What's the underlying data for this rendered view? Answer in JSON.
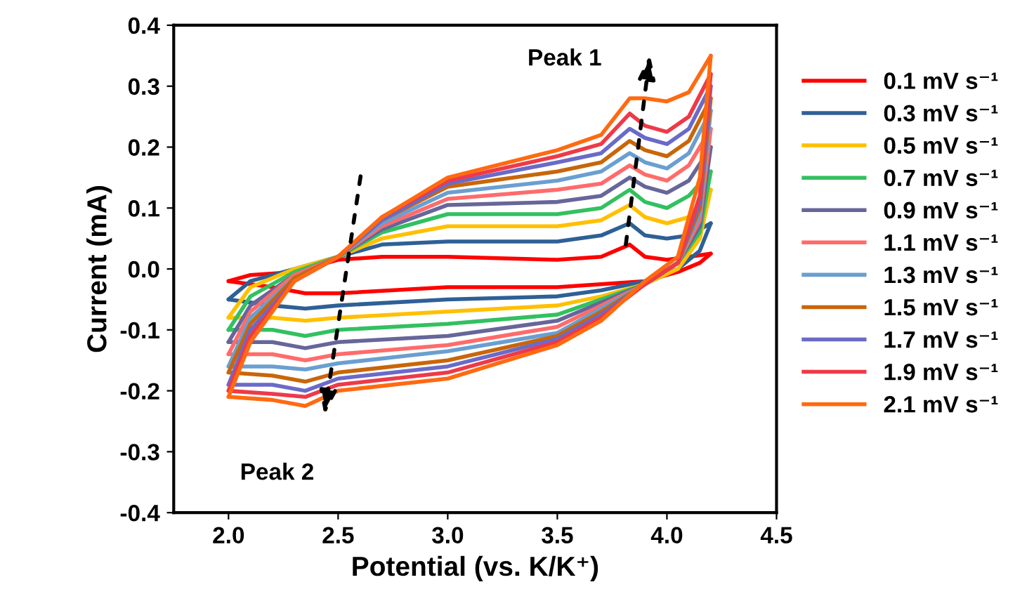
{
  "chart_data": {
    "type": "line",
    "xlabel": "Potential (vs. K/K⁺)",
    "ylabel": "Current (mA)",
    "xlim": [
      1.75,
      4.5
    ],
    "ylim": [
      -0.4,
      0.4
    ],
    "xticks": [
      {
        "value": 2.0,
        "label": "2.0"
      },
      2.5,
      {
        "value": 3.0,
        "label": "3.0"
      },
      3.5,
      {
        "value": 4.0,
        "label": "4.0"
      },
      4.5
    ],
    "yticks": [
      -0.4,
      -0.3,
      -0.2,
      -0.1,
      {
        "value": 0.0,
        "label": "0.0"
      },
      0.1,
      0.2,
      0.3,
      0.4
    ],
    "grid": false,
    "legend": "right",
    "marker": "none",
    "line_style": "solid",
    "annotations": [
      "Peak 1",
      "Peak 2"
    ],
    "series": [
      {
        "name": "0.1 mV s⁻¹",
        "color": "#ff0000",
        "x": [
          2.0,
          2.1,
          2.3,
          2.5,
          2.7,
          3.0,
          3.5,
          3.7,
          3.83,
          3.9,
          4.0,
          4.1,
          4.2
        ],
        "values": [
          -0.02,
          -0.01,
          -0.005,
          0.015,
          0.02,
          0.02,
          0.015,
          0.02,
          0.04,
          0.02,
          0.015,
          0.02,
          0.025
        ]
      },
      {
        "color": "#ff0000",
        "x": [
          4.2,
          4.15,
          4.05,
          3.9,
          3.7,
          3.5,
          3.0,
          2.5,
          2.35,
          2.2,
          2.0
        ],
        "values": [
          0.025,
          0.01,
          -0.005,
          -0.02,
          -0.025,
          -0.03,
          -0.03,
          -0.04,
          -0.04,
          -0.03,
          -0.02
        ]
      },
      {
        "name": "0.3 mV s⁻¹",
        "color": "#2e6096",
        "x": [
          2.0,
          2.1,
          2.3,
          2.5,
          2.7,
          3.0,
          3.5,
          3.7,
          3.83,
          3.9,
          4.0,
          4.1,
          4.2
        ],
        "values": [
          -0.05,
          -0.02,
          0.0,
          0.02,
          0.04,
          0.045,
          0.045,
          0.055,
          0.075,
          0.055,
          0.05,
          0.055,
          0.075
        ]
      },
      {
        "color": "#2e6096",
        "x": [
          4.2,
          4.15,
          4.05,
          3.9,
          3.7,
          3.5,
          3.0,
          2.5,
          2.35,
          2.2,
          2.0
        ],
        "values": [
          0.075,
          0.03,
          0.0,
          -0.02,
          -0.035,
          -0.045,
          -0.05,
          -0.06,
          -0.065,
          -0.06,
          -0.05
        ]
      },
      {
        "name": "0.5 mV s⁻¹",
        "color": "#ffc000",
        "x": [
          2.0,
          2.1,
          2.3,
          2.5,
          2.7,
          3.0,
          3.5,
          3.7,
          3.83,
          3.9,
          4.0,
          4.1,
          4.2
        ],
        "values": [
          -0.08,
          -0.03,
          0.0,
          0.02,
          0.05,
          0.07,
          0.07,
          0.08,
          0.105,
          0.085,
          0.075,
          0.085,
          0.13
        ]
      },
      {
        "color": "#ffc000",
        "x": [
          4.2,
          4.15,
          4.05,
          3.9,
          3.7,
          3.5,
          3.0,
          2.5,
          2.35,
          2.2,
          2.0
        ],
        "values": [
          0.13,
          0.05,
          0.0,
          -0.025,
          -0.045,
          -0.06,
          -0.07,
          -0.08,
          -0.085,
          -0.08,
          -0.08
        ]
      },
      {
        "name": "0.7 mV s⁻¹",
        "color": "#33c060",
        "x": [
          2.0,
          2.1,
          2.3,
          2.5,
          2.7,
          3.0,
          3.5,
          3.7,
          3.83,
          3.9,
          4.0,
          4.1,
          4.2
        ],
        "values": [
          -0.1,
          -0.045,
          -0.005,
          0.02,
          0.06,
          0.09,
          0.09,
          0.1,
          0.13,
          0.11,
          0.1,
          0.12,
          0.16
        ]
      },
      {
        "color": "#33c060",
        "x": [
          4.2,
          4.15,
          4.05,
          3.9,
          3.7,
          3.5,
          3.0,
          2.5,
          2.35,
          2.2,
          2.0
        ],
        "values": [
          0.16,
          0.06,
          0.01,
          -0.025,
          -0.05,
          -0.075,
          -0.09,
          -0.1,
          -0.11,
          -0.1,
          -0.1
        ]
      },
      {
        "name": "0.9 mV s⁻¹",
        "color": "#66669a",
        "x": [
          2.0,
          2.1,
          2.3,
          2.5,
          2.7,
          3.0,
          3.5,
          3.7,
          3.83,
          3.9,
          4.0,
          4.1,
          4.2
        ],
        "values": [
          -0.12,
          -0.06,
          -0.01,
          0.02,
          0.065,
          0.105,
          0.11,
          0.12,
          0.15,
          0.135,
          0.125,
          0.145,
          0.2
        ]
      },
      {
        "color": "#66669a",
        "x": [
          4.2,
          4.15,
          4.05,
          3.9,
          3.7,
          3.5,
          3.0,
          2.5,
          2.35,
          2.2,
          2.0
        ],
        "values": [
          0.2,
          0.07,
          0.01,
          -0.025,
          -0.055,
          -0.085,
          -0.11,
          -0.12,
          -0.13,
          -0.12,
          -0.12
        ]
      },
      {
        "name": "1.1 mV s⁻¹",
        "color": "#ff6b6b",
        "x": [
          2.0,
          2.1,
          2.3,
          2.5,
          2.7,
          3.0,
          3.5,
          3.7,
          3.83,
          3.9,
          4.0,
          4.1,
          4.2
        ],
        "values": [
          -0.14,
          -0.07,
          -0.01,
          0.02,
          0.07,
          0.115,
          0.13,
          0.14,
          0.17,
          0.155,
          0.145,
          0.17,
          0.23
        ]
      },
      {
        "color": "#ff6b6b",
        "x": [
          4.2,
          4.15,
          4.05,
          3.9,
          3.7,
          3.5,
          3.0,
          2.5,
          2.35,
          2.2,
          2.0
        ],
        "values": [
          0.23,
          0.08,
          0.01,
          -0.025,
          -0.06,
          -0.095,
          -0.125,
          -0.14,
          -0.15,
          -0.14,
          -0.14
        ]
      },
      {
        "name": "1.3 mV s⁻¹",
        "color": "#6a9fd0",
        "x": [
          2.0,
          2.1,
          2.3,
          2.5,
          2.7,
          3.0,
          3.5,
          3.7,
          3.83,
          3.9,
          4.0,
          4.1,
          4.2
        ],
        "values": [
          -0.16,
          -0.08,
          -0.015,
          0.02,
          0.075,
          0.125,
          0.145,
          0.16,
          0.19,
          0.175,
          0.165,
          0.19,
          0.26
        ]
      },
      {
        "color": "#6a9fd0",
        "x": [
          4.2,
          4.15,
          4.05,
          3.9,
          3.7,
          3.5,
          3.0,
          2.5,
          2.35,
          2.2,
          2.0
        ],
        "values": [
          0.26,
          0.09,
          0.01,
          -0.025,
          -0.065,
          -0.105,
          -0.135,
          -0.155,
          -0.165,
          -0.16,
          -0.16
        ]
      },
      {
        "name": "1.5 mV s⁻¹",
        "color": "#c8660a",
        "x": [
          2.0,
          2.1,
          2.3,
          2.5,
          2.7,
          3.0,
          3.5,
          3.7,
          3.83,
          3.9,
          4.0,
          4.1,
          4.2
        ],
        "values": [
          -0.17,
          -0.09,
          -0.015,
          0.02,
          0.08,
          0.135,
          0.16,
          0.175,
          0.21,
          0.195,
          0.185,
          0.21,
          0.28
        ]
      },
      {
        "color": "#c8660a",
        "x": [
          4.2,
          4.15,
          4.05,
          3.9,
          3.7,
          3.5,
          3.0,
          2.5,
          2.35,
          2.2,
          2.0
        ],
        "values": [
          0.28,
          0.1,
          0.01,
          -0.025,
          -0.07,
          -0.11,
          -0.15,
          -0.17,
          -0.185,
          -0.175,
          -0.17
        ]
      },
      {
        "name": "1.7 mV s⁻¹",
        "color": "#6a6ac8",
        "x": [
          2.0,
          2.1,
          2.3,
          2.5,
          2.7,
          3.0,
          3.5,
          3.7,
          3.83,
          3.9,
          4.0,
          4.1,
          4.2
        ],
        "values": [
          -0.19,
          -0.1,
          -0.02,
          0.02,
          0.08,
          0.14,
          0.175,
          0.19,
          0.23,
          0.215,
          0.205,
          0.23,
          0.3
        ]
      },
      {
        "color": "#6a6ac8",
        "x": [
          4.2,
          4.15,
          4.05,
          3.9,
          3.7,
          3.5,
          3.0,
          2.5,
          2.35,
          2.2,
          2.0
        ],
        "values": [
          0.3,
          0.11,
          0.01,
          -0.025,
          -0.075,
          -0.115,
          -0.16,
          -0.18,
          -0.2,
          -0.19,
          -0.19
        ]
      },
      {
        "name": "1.9 mV s⁻¹",
        "color": "#ee3a48",
        "x": [
          2.0,
          2.1,
          2.3,
          2.5,
          2.7,
          3.0,
          3.5,
          3.7,
          3.83,
          3.9,
          4.0,
          4.1,
          4.2
        ],
        "values": [
          -0.2,
          -0.11,
          -0.02,
          0.02,
          0.085,
          0.145,
          0.185,
          0.205,
          0.255,
          0.235,
          0.225,
          0.25,
          0.32
        ]
      },
      {
        "color": "#ee3a48",
        "x": [
          4.2,
          4.15,
          4.05,
          3.9,
          3.7,
          3.5,
          3.0,
          2.5,
          2.35,
          2.2,
          2.0
        ],
        "values": [
          0.32,
          0.12,
          0.01,
          -0.025,
          -0.08,
          -0.12,
          -0.17,
          -0.19,
          -0.21,
          -0.205,
          -0.2
        ]
      },
      {
        "name": "2.1 mV s⁻¹",
        "color": "#ff6a10",
        "x": [
          2.0,
          2.1,
          2.3,
          2.5,
          2.7,
          3.0,
          3.5,
          3.7,
          3.83,
          3.9,
          4.0,
          4.1,
          4.2
        ],
        "values": [
          -0.21,
          -0.12,
          -0.02,
          0.02,
          0.085,
          0.15,
          0.195,
          0.22,
          0.28,
          0.28,
          0.275,
          0.29,
          0.35
        ]
      },
      {
        "color": "#ff6a10",
        "x": [
          4.2,
          4.15,
          4.05,
          3.9,
          3.7,
          3.5,
          3.0,
          2.5,
          2.35,
          2.2,
          2.0
        ],
        "values": [
          0.35,
          0.15,
          0.02,
          -0.02,
          -0.085,
          -0.125,
          -0.18,
          -0.2,
          -0.225,
          -0.215,
          -0.21
        ]
      }
    ]
  }
}
